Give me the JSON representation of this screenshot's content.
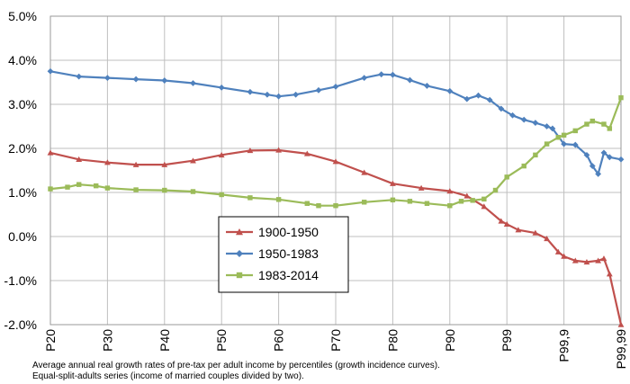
{
  "chart_data": {
    "type": "line",
    "title": "",
    "xlabel": "",
    "ylabel": "",
    "ylim": [
      -2.0,
      5.0
    ],
    "yticks": [
      "5.0%",
      "4.0%",
      "3.0%",
      "2.0%",
      "1.0%",
      "0.0%",
      "-1.0%",
      "-2.0%"
    ],
    "ytick_values": [
      5,
      4,
      3,
      2,
      1,
      0,
      -1,
      -2
    ],
    "xticks": [
      "P20",
      "P30",
      "P40",
      "P50",
      "P60",
      "P70",
      "P80",
      "P90",
      "P99",
      "P99,9",
      "P99,99"
    ],
    "xtick_index": [
      0,
      10,
      20,
      30,
      40,
      50,
      60,
      70,
      80,
      90,
      100
    ],
    "grid": true,
    "legend_position": "center",
    "series": [
      {
        "name": "1900-1950",
        "color": "#C0504D",
        "marker": "triangle",
        "points": [
          [
            0,
            1.9
          ],
          [
            5,
            1.75
          ],
          [
            10,
            1.68
          ],
          [
            15,
            1.63
          ],
          [
            20,
            1.63
          ],
          [
            25,
            1.72
          ],
          [
            30,
            1.85
          ],
          [
            35,
            1.95
          ],
          [
            40,
            1.96
          ],
          [
            45,
            1.88
          ],
          [
            50,
            1.7
          ],
          [
            55,
            1.45
          ],
          [
            60,
            1.2
          ],
          [
            65,
            1.1
          ],
          [
            70,
            1.03
          ],
          [
            73,
            0.92
          ],
          [
            76,
            0.68
          ],
          [
            79,
            0.35
          ],
          [
            80,
            0.28
          ],
          [
            82,
            0.15
          ],
          [
            85,
            0.08
          ],
          [
            87,
            -0.05
          ],
          [
            89,
            -0.35
          ],
          [
            90,
            -0.45
          ],
          [
            92,
            -0.55
          ],
          [
            94,
            -0.58
          ],
          [
            96,
            -0.55
          ],
          [
            97,
            -0.5
          ],
          [
            98,
            -0.85
          ],
          [
            100,
            -2.0
          ]
        ]
      },
      {
        "name": "1950-1983",
        "color": "#4F81BD",
        "marker": "diamond",
        "points": [
          [
            0,
            3.75
          ],
          [
            5,
            3.63
          ],
          [
            10,
            3.6
          ],
          [
            15,
            3.57
          ],
          [
            20,
            3.54
          ],
          [
            25,
            3.48
          ],
          [
            30,
            3.38
          ],
          [
            35,
            3.28
          ],
          [
            38,
            3.22
          ],
          [
            40,
            3.18
          ],
          [
            43,
            3.22
          ],
          [
            47,
            3.32
          ],
          [
            50,
            3.4
          ],
          [
            55,
            3.6
          ],
          [
            58,
            3.68
          ],
          [
            60,
            3.67
          ],
          [
            63,
            3.55
          ],
          [
            66,
            3.42
          ],
          [
            70,
            3.3
          ],
          [
            73,
            3.12
          ],
          [
            75,
            3.2
          ],
          [
            77,
            3.1
          ],
          [
            79,
            2.9
          ],
          [
            81,
            2.75
          ],
          [
            83,
            2.65
          ],
          [
            85,
            2.58
          ],
          [
            87,
            2.5
          ],
          [
            88,
            2.45
          ],
          [
            90,
            2.1
          ],
          [
            92,
            2.08
          ],
          [
            94,
            1.85
          ],
          [
            95,
            1.6
          ],
          [
            96,
            1.42
          ],
          [
            97,
            1.9
          ],
          [
            98,
            1.8
          ],
          [
            100,
            1.75
          ]
        ]
      },
      {
        "name": "1983-2014",
        "color": "#9BBB59",
        "marker": "square",
        "points": [
          [
            0,
            1.08
          ],
          [
            3,
            1.12
          ],
          [
            5,
            1.18
          ],
          [
            8,
            1.15
          ],
          [
            10,
            1.1
          ],
          [
            15,
            1.06
          ],
          [
            20,
            1.05
          ],
          [
            25,
            1.02
          ],
          [
            30,
            0.95
          ],
          [
            35,
            0.88
          ],
          [
            40,
            0.84
          ],
          [
            45,
            0.75
          ],
          [
            47,
            0.7
          ],
          [
            50,
            0.7
          ],
          [
            55,
            0.78
          ],
          [
            60,
            0.83
          ],
          [
            63,
            0.8
          ],
          [
            66,
            0.75
          ],
          [
            70,
            0.7
          ],
          [
            72,
            0.8
          ],
          [
            74,
            0.82
          ],
          [
            76,
            0.85
          ],
          [
            78,
            1.05
          ],
          [
            80,
            1.35
          ],
          [
            83,
            1.6
          ],
          [
            85,
            1.85
          ],
          [
            87,
            2.1
          ],
          [
            89,
            2.25
          ],
          [
            90,
            2.3
          ],
          [
            92,
            2.4
          ],
          [
            94,
            2.55
          ],
          [
            95,
            2.62
          ],
          [
            97,
            2.55
          ],
          [
            98,
            2.45
          ],
          [
            100,
            3.15
          ]
        ]
      }
    ]
  },
  "captions": {
    "line1": "Average annual real growth rates of pre-tax per adult income by percentiles (growth incidence curves).",
    "line2": "Equal-split-adults series (income of married couples divided by two)."
  }
}
